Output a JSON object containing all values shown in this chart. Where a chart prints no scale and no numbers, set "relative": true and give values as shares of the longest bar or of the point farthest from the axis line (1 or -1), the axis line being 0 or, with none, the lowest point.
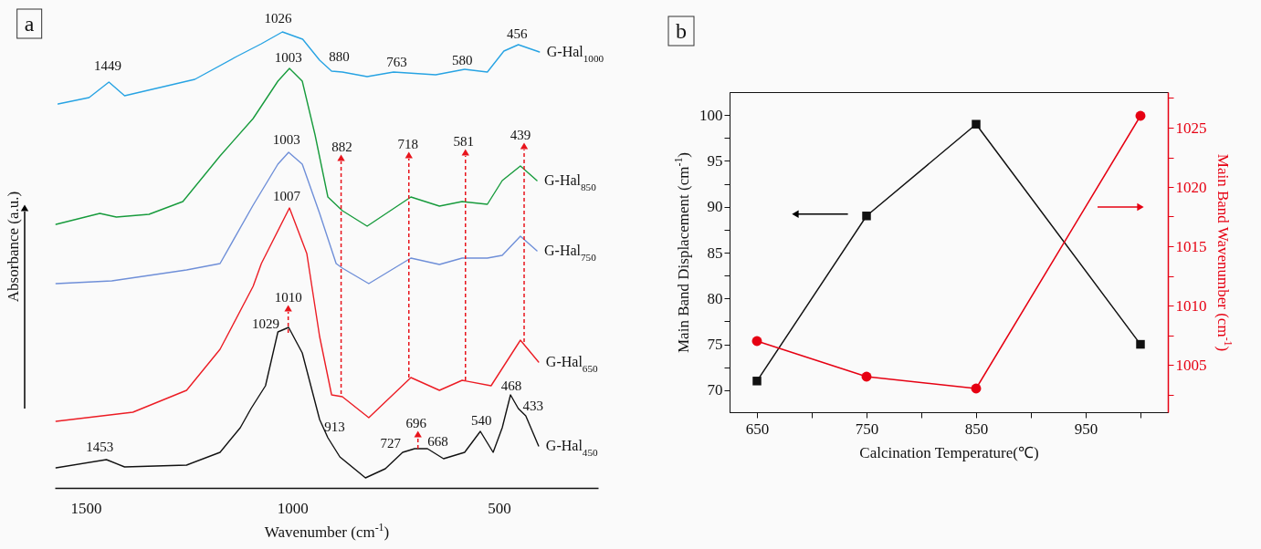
{
  "chart_data": [
    {
      "type": "line",
      "title": "a",
      "relative": true,
      "xlabel": "Wavenumber (cm$^{-1}$)",
      "ylabel": "Absorbance (a.u.)",
      "xlim": [
        1575,
        260
      ],
      "xticks": [
        1500,
        1000,
        500
      ],
      "series": [
        {
          "name": "G-Hal$_{1000}$",
          "color": "#27a3e3",
          "x": [
            1567,
            1492,
            1444,
            1406,
            1236,
            1135,
            1075,
            1024,
            975,
            934,
            905,
            879,
            819,
            755,
            653,
            583,
            528,
            488,
            453,
            402
          ],
          "values": [
            0.842,
            0.856,
            0.89,
            0.86,
            0.896,
            0.946,
            0.974,
            1.0,
            0.984,
            0.938,
            0.914,
            0.912,
            0.902,
            0.912,
            0.906,
            0.918,
            0.912,
            0.958,
            0.972,
            0.956
          ]
        },
        {
          "name": "G-Hal$_{850}$",
          "color": "#179b3c",
          "x": [
            1572,
            1466,
            1426,
            1347,
            1265,
            1175,
            1095,
            1035,
            1007,
            976,
            945,
            914,
            879,
            819,
            713,
            644,
            589,
            528,
            492,
            448,
            408
          ],
          "values": [
            0.578,
            0.602,
            0.594,
            0.6,
            0.628,
            0.728,
            0.81,
            0.892,
            0.92,
            0.892,
            0.774,
            0.638,
            0.608,
            0.574,
            0.638,
            0.618,
            0.628,
            0.622,
            0.674,
            0.706,
            0.674
          ]
        },
        {
          "name": "G-Hal$_{750}$",
          "color": "#6f8fd8",
          "x": [
            1572,
            1437,
            1256,
            1175,
            1095,
            1035,
            1009,
            976,
            934,
            894,
            879,
            815,
            713,
            644,
            589,
            528,
            492,
            448,
            408
          ],
          "values": [
            0.448,
            0.454,
            0.478,
            0.492,
            0.62,
            0.71,
            0.736,
            0.71,
            0.602,
            0.492,
            0.482,
            0.448,
            0.504,
            0.49,
            0.504,
            0.504,
            0.51,
            0.552,
            0.52
          ]
        },
        {
          "name": "G-Hal$_{650}$",
          "color": "#ec1c24",
          "x": [
            1572,
            1386,
            1256,
            1175,
            1095,
            1075,
            1055,
            1007,
            965,
            934,
            905,
            879,
            815,
            713,
            644,
            589,
            519,
            448,
            404
          ],
          "values": [
            0.146,
            0.166,
            0.214,
            0.304,
            0.442,
            0.492,
            0.528,
            0.614,
            0.514,
            0.332,
            0.204,
            0.2,
            0.154,
            0.242,
            0.214,
            0.236,
            0.224,
            0.324,
            0.276
          ]
        },
        {
          "name": "G-Hal$_{450}$",
          "color": "#111111",
          "x": [
            1572,
            1450,
            1406,
            1256,
            1175,
            1126,
            1100,
            1065,
            1035,
            1009,
            976,
            934,
            914,
            885,
            823,
            775,
            733,
            704,
            673,
            634,
            583,
            545,
            514,
            492,
            472,
            453,
            435,
            404
          ],
          "values": [
            0.044,
            0.062,
            0.046,
            0.05,
            0.078,
            0.132,
            0.174,
            0.224,
            0.342,
            0.352,
            0.296,
            0.15,
            0.11,
            0.068,
            0.022,
            0.042,
            0.078,
            0.086,
            0.086,
            0.064,
            0.078,
            0.124,
            0.078,
            0.132,
            0.204,
            0.174,
            0.158,
            0.092
          ]
        }
      ],
      "annotations": [
        {
          "text": "1449",
          "x": 1449,
          "y": 0.89
        },
        {
          "text": "1026",
          "x": 1026,
          "y": 1.0
        },
        {
          "text": "1003",
          "x": 1003,
          "y": 0.92
        },
        {
          "text": "880",
          "x": 880,
          "y": 0.912
        },
        {
          "text": "763",
          "x": 763,
          "y": 0.912
        },
        {
          "text": "580",
          "x": 580,
          "y": 0.918
        },
        {
          "text": "456",
          "x": 456,
          "y": 0.972
        },
        {
          "text": "1003",
          "x": 1003,
          "y": 0.736
        },
        {
          "text": "882",
          "x": 882,
          "y": 0.206
        },
        {
          "text": "718",
          "x": 718,
          "y": 0.242
        },
        {
          "text": "581",
          "x": 581,
          "y": 0.236
        },
        {
          "text": "439",
          "x": 439,
          "y": 0.32
        },
        {
          "text": "1007",
          "x": 1007,
          "y": 0.614
        },
        {
          "text": "1010",
          "x": 1010,
          "y": 0.34
        },
        {
          "text": "1029",
          "x": 1029,
          "y": 0.345
        },
        {
          "text": "913",
          "x": 913,
          "y": 0.11
        },
        {
          "text": "696",
          "x": 696,
          "y": 0.086
        },
        {
          "text": "727",
          "x": 727,
          "y": 0.08
        },
        {
          "text": "668",
          "x": 668,
          "y": 0.086
        },
        {
          "text": "540",
          "x": 540,
          "y": 0.124
        },
        {
          "text": "468",
          "x": 468,
          "y": 0.2
        },
        {
          "text": "433",
          "x": 433,
          "y": 0.158
        },
        {
          "text": "1453",
          "x": 1453,
          "y": 0.062
        }
      ]
    },
    {
      "type": "line",
      "title": "b",
      "xlabel": "Calcination Temperature(℃)",
      "ylabel": "Main Band Displacement (cm$^{-1}$)",
      "y2label": "Main Band Wavenumber (cm$^{-1}$)",
      "x": [
        650,
        750,
        850,
        1000
      ],
      "xlim": [
        625,
        1025
      ],
      "xticks": [
        650,
        {
          "value": 700,
          "label": null
        },
        750,
        {
          "value": 800,
          "label": null
        },
        850,
        {
          "value": 900,
          "label": null
        },
        950,
        {
          "value": 1000,
          "label": null
        }
      ],
      "ylim": [
        67.6,
        102.5
      ],
      "yticks": [
        70,
        {
          "value": 72.5,
          "label": null
        },
        75,
        {
          "value": 77.5,
          "label": null
        },
        80,
        {
          "value": 82.5,
          "label": null
        },
        85,
        {
          "value": 87.5,
          "label": null
        },
        90,
        {
          "value": 92.5,
          "label": null
        },
        95,
        {
          "value": 97.5,
          "label": null
        },
        100
      ],
      "y2lim": [
        1001,
        1028
      ],
      "y2ticks": [
        {
          "value": 1002.5,
          "label": null
        },
        1005,
        {
          "value": 1007.5,
          "label": null
        },
        1010,
        {
          "value": 1012.5,
          "label": null
        },
        1015,
        {
          "value": 1017.5,
          "label": null
        },
        1020,
        {
          "value": 1022.5,
          "label": null
        },
        1025,
        {
          "value": 1027.5,
          "label": null
        }
      ],
      "series": [
        {
          "color": "#111111",
          "marker": "square",
          "values": [
            71,
            89,
            99,
            75
          ]
        },
        {
          "color": "#e60012",
          "marker": "circle",
          "axis": "y2",
          "values": [
            1007,
            1004,
            1003,
            1026
          ]
        }
      ]
    }
  ]
}
